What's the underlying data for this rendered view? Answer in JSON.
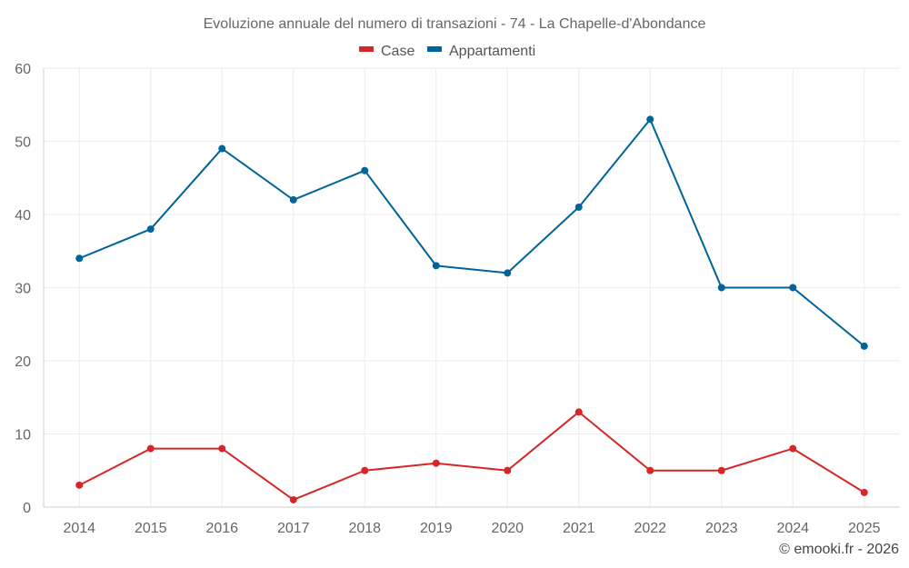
{
  "colors": {
    "case": "#d62728",
    "appartamenti": "#00639a"
  },
  "credit": "© emooki.fr - 2026",
  "chart_data": {
    "type": "line",
    "title": "Evoluzione annuale del numero di transazioni - 74 - La Chapelle-d'Abondance",
    "xlabel": "",
    "ylabel": "",
    "categories": [
      "2014",
      "2015",
      "2016",
      "2017",
      "2018",
      "2019",
      "2020",
      "2021",
      "2022",
      "2023",
      "2024",
      "2025"
    ],
    "ylim": [
      0,
      60
    ],
    "yticks": [
      0,
      10,
      20,
      30,
      40,
      50,
      60
    ],
    "grid": true,
    "legend_position": "top-center",
    "series": [
      {
        "name": "Case",
        "color": "#d62728",
        "values": [
          3,
          8,
          8,
          1,
          5,
          6,
          5,
          13,
          5,
          5,
          8,
          2
        ]
      },
      {
        "name": "Appartamenti",
        "color": "#00639a",
        "values": [
          34,
          38,
          49,
          42,
          46,
          33,
          32,
          41,
          53,
          30,
          30,
          22
        ]
      }
    ]
  }
}
